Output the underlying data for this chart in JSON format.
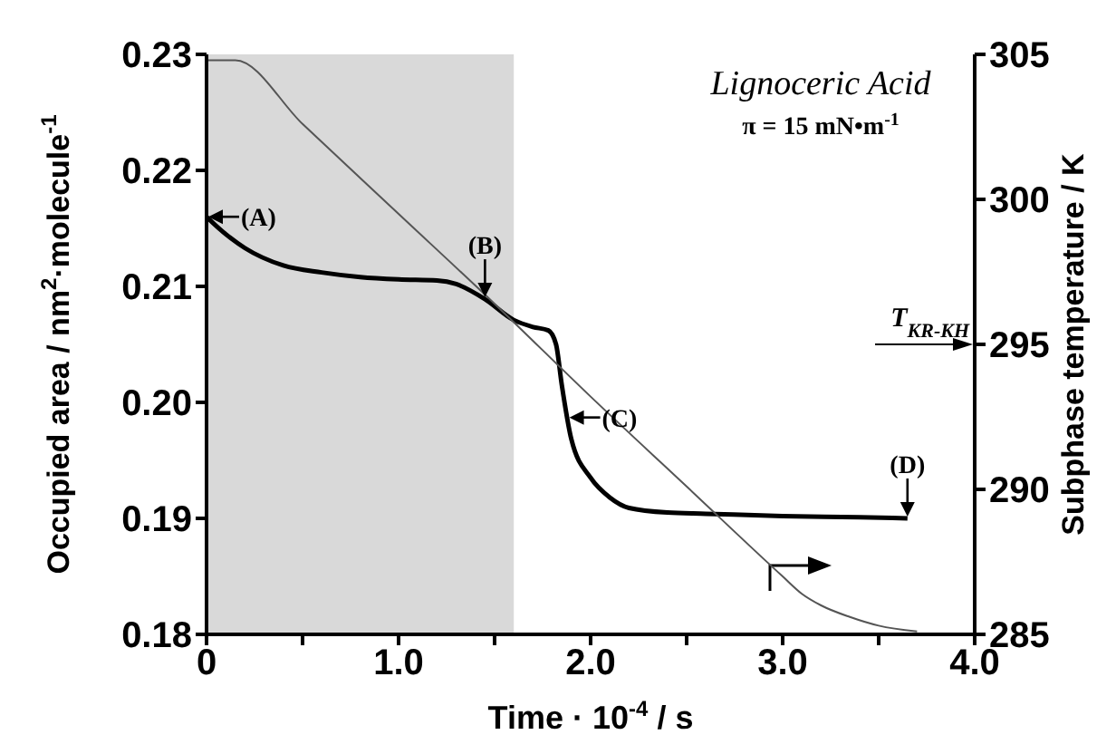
{
  "chart_data": {
    "type": "line",
    "xlabel": "Time · 10$^{-4}$ / s",
    "ylabel": "Occupied area / nm$^{2}$·molecule$^{-1}$",
    "y2label": "Subphase temperature / K",
    "xlim": [
      0,
      4
    ],
    "xticks": [
      0,
      {
        "value": 0.5,
        "label": null
      },
      {
        "value": 1,
        "label": "1.0"
      },
      {
        "value": 1.5,
        "label": null
      },
      {
        "value": 2,
        "label": "2.0"
      },
      {
        "value": 2.5,
        "label": null
      },
      {
        "value": 3,
        "label": "3.0"
      },
      {
        "value": 3.5,
        "label": null
      },
      {
        "value": 4,
        "label": "4.0"
      }
    ],
    "ylim": [
      0.18,
      0.23
    ],
    "yticks": [
      0.18,
      0.19,
      {
        "value": 0.2,
        "label": "0.20"
      },
      0.21,
      0.22,
      0.23
    ],
    "y2lim": [
      285,
      305
    ],
    "y2ticks": [
      285,
      290,
      295,
      300,
      305
    ],
    "series": [
      {
        "color": "#000000",
        "x": [
          0,
          0.1,
          0.2,
          0.4,
          0.6,
          0.8,
          1.0,
          1.2,
          1.3,
          1.45,
          1.6,
          1.7,
          1.78,
          1.82,
          1.85,
          1.9,
          2.0,
          2.1,
          2.2,
          2.4,
          2.6,
          3.0,
          3.4,
          3.65
        ],
        "values": [
          0.216,
          0.2145,
          0.2133,
          0.2118,
          0.2112,
          0.2108,
          0.2106,
          0.2105,
          0.2102,
          0.2089,
          0.2071,
          0.2065,
          0.2062,
          0.205,
          0.2015,
          0.1968,
          0.1935,
          0.1918,
          0.1909,
          0.1905,
          0.1904,
          0.1902,
          0.1901,
          0.19
        ]
      },
      {
        "color": "#555555",
        "axis": "y2",
        "x": [
          0,
          0.15,
          0.5,
          1.0,
          1.5,
          2.0,
          2.5,
          3.0,
          3.1,
          3.2,
          3.35,
          3.5,
          3.7
        ],
        "values": [
          304.8,
          304.8,
          302.6,
          299.5,
          296.4,
          293.2,
          290.1,
          287.0,
          286.4,
          286.0,
          285.6,
          285.3,
          285.1
        ]
      }
    ],
    "bands": [
      {
        "axis": "x",
        "from": 0,
        "to": 1.6,
        "color": "#d9d9d9"
      }
    ],
    "ref_lines": [
      {
        "axis": "y2",
        "value": 295,
        "label": "T$_{KR-KH}$"
      }
    ],
    "annotations": [
      "Lignoceric Acid",
      "π = 15 mN•m$^{-1}$",
      {
        "text": "(A)",
        "x": 0,
        "y": 0.216
      },
      {
        "text": "(B)",
        "x": 1.45,
        "y": 0.2089
      },
      {
        "text": "(C)",
        "x": 1.88,
        "y": 0.1987
      },
      {
        "text": "(D)",
        "x": 3.65,
        "y": 0.19
      }
    ]
  }
}
